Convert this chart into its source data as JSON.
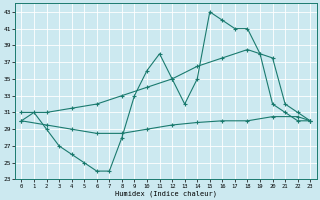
{
  "xlabel": "Humidex (Indice chaleur)",
  "xlim": [
    -0.5,
    23.5
  ],
  "ylim": [
    23,
    44
  ],
  "yticks": [
    23,
    25,
    27,
    29,
    31,
    33,
    35,
    37,
    39,
    41,
    43
  ],
  "xticks": [
    0,
    1,
    2,
    3,
    4,
    5,
    6,
    7,
    8,
    9,
    10,
    11,
    12,
    13,
    14,
    15,
    16,
    17,
    18,
    19,
    20,
    21,
    22,
    23
  ],
  "bg_color": "#cce9f0",
  "grid_color": "#ffffff",
  "line_color": "#1a7a6e",
  "line1_x": [
    0,
    1,
    2,
    3,
    4,
    5,
    6,
    7,
    8,
    9,
    10,
    11,
    12,
    13,
    14,
    15,
    16,
    17,
    18,
    19,
    20,
    21,
    22,
    23
  ],
  "line1_y": [
    30,
    31,
    29,
    27,
    26,
    25,
    24,
    24,
    28,
    33,
    36,
    38,
    35,
    32,
    35,
    43,
    42,
    41,
    41,
    38,
    32,
    31,
    30,
    30
  ],
  "line2_x": [
    0,
    2,
    4,
    6,
    8,
    10,
    12,
    14,
    16,
    18,
    19,
    20,
    21,
    22,
    23
  ],
  "line2_y": [
    31,
    31,
    31.5,
    32,
    33,
    34,
    35,
    36.5,
    37.5,
    38.5,
    38,
    37.5,
    32,
    31,
    30
  ],
  "line3_x": [
    0,
    2,
    4,
    6,
    8,
    10,
    12,
    14,
    16,
    18,
    20,
    22,
    23
  ],
  "line3_y": [
    30,
    29.5,
    29,
    28.5,
    28.5,
    29,
    29.5,
    29.8,
    30,
    30,
    30.5,
    30.5,
    30
  ]
}
